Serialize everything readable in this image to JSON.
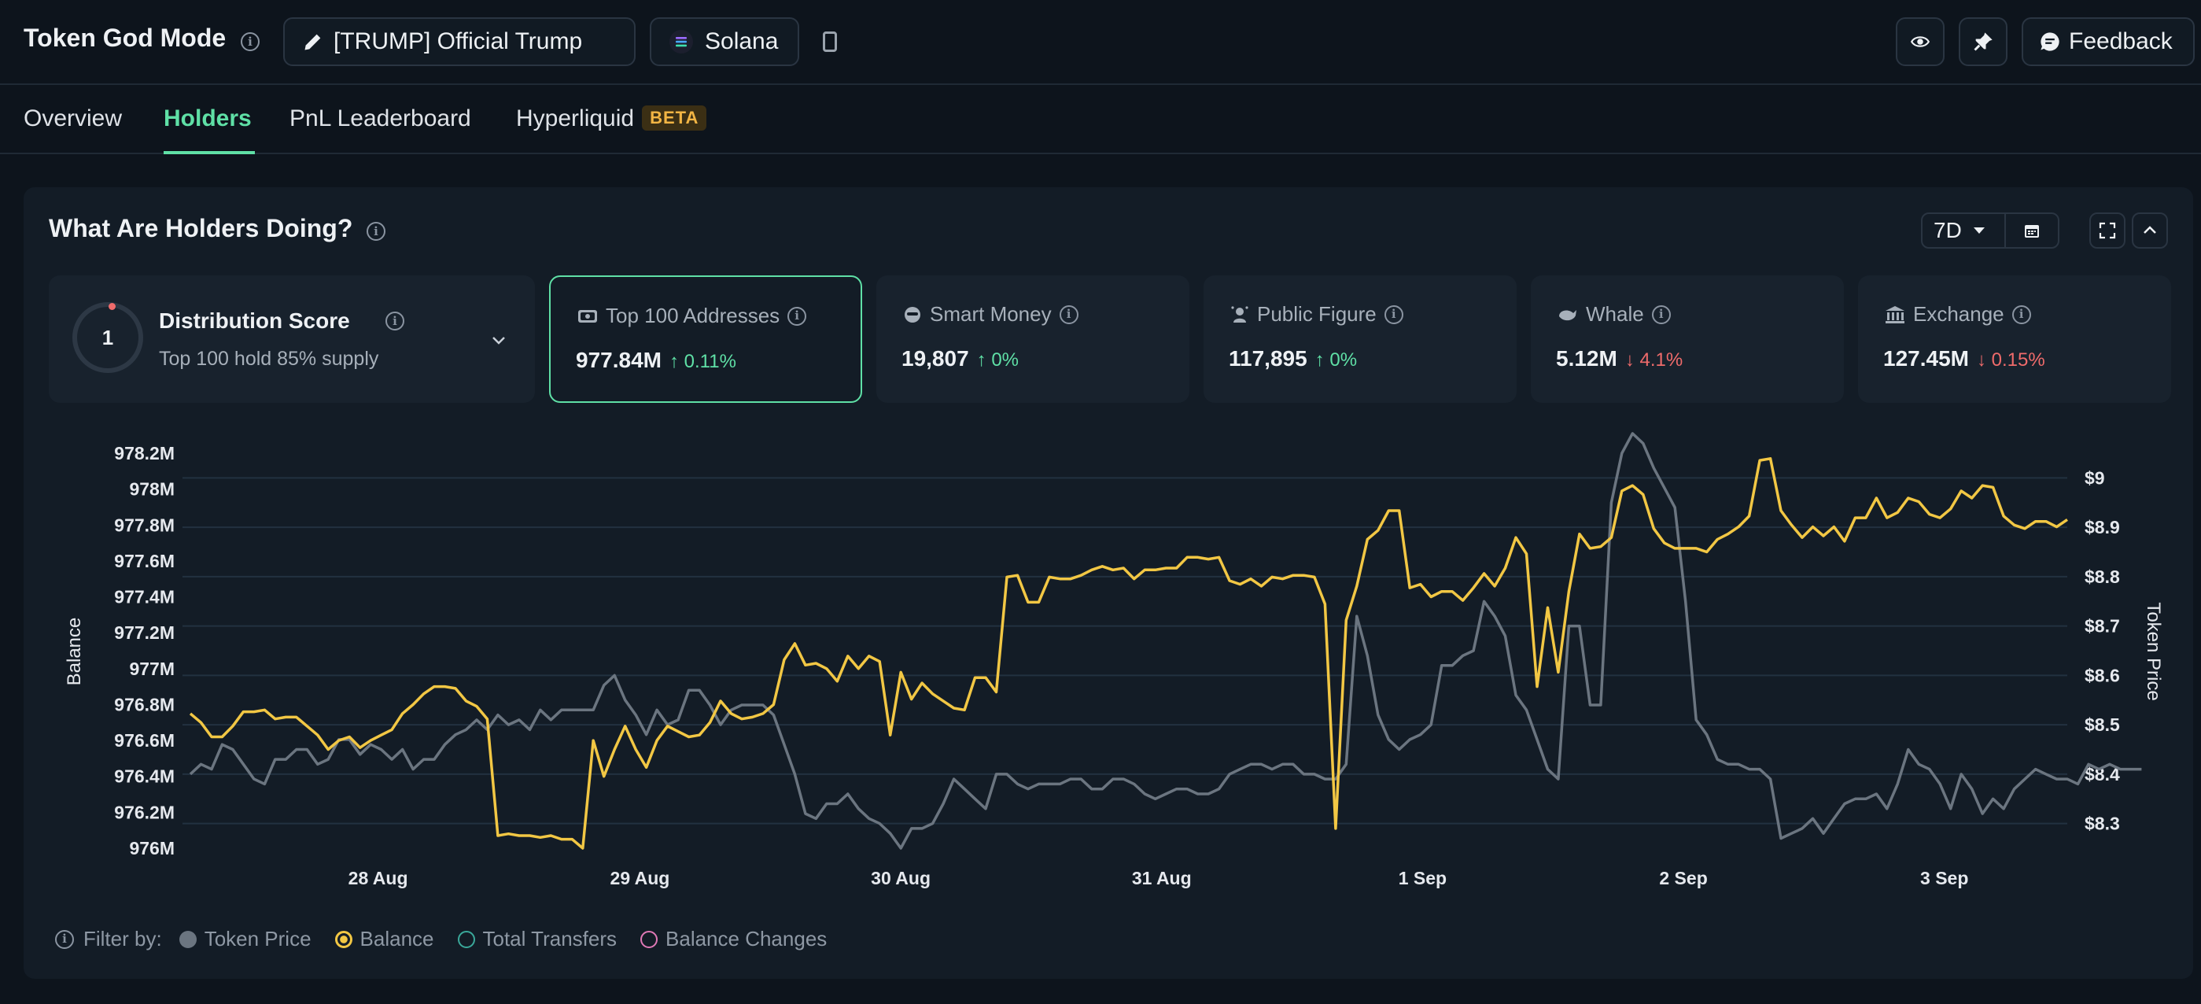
{
  "header": {
    "title": "Token God Mode",
    "token_label": "[TRUMP] Official Trump",
    "chain_label": "Solana",
    "feedback_label": "Feedback"
  },
  "tabs": [
    {
      "label": "Overview"
    },
    {
      "label": "Holders"
    },
    {
      "label": "PnL Leaderboard"
    },
    {
      "label": "Hyperliquid",
      "badge": "BETA"
    }
  ],
  "panel": {
    "title": "What Are Holders Doing?",
    "range": "7D"
  },
  "distribution": {
    "score": "1",
    "title": "Distribution Score",
    "subtitle": "Top 100 hold 85% supply"
  },
  "cards": [
    {
      "label": "Top 100 Addresses",
      "value": "977.84M",
      "change": "0.11%",
      "direction": "up",
      "icon": "wallet-icon"
    },
    {
      "label": "Smart Money",
      "value": "19,807",
      "change": "0%",
      "direction": "up",
      "icon": "smart-money-icon"
    },
    {
      "label": "Public Figure",
      "value": "117,895",
      "change": "0%",
      "direction": "up",
      "icon": "public-figure-icon"
    },
    {
      "label": "Whale",
      "value": "5.12M",
      "change": "4.1%",
      "direction": "down",
      "icon": "whale-icon"
    },
    {
      "label": "Exchange",
      "value": "127.45M",
      "change": "0.15%",
      "direction": "down",
      "icon": "exchange-icon"
    }
  ],
  "filters": {
    "label": "Filter by:",
    "items": [
      {
        "label": "Token Price",
        "color": "#6b7580",
        "active": true
      },
      {
        "label": "Balance",
        "color": "#f2c744",
        "active": true
      },
      {
        "label": "Total Transfers",
        "color": "#3aa89a",
        "active": false
      },
      {
        "label": "Balance Changes",
        "color": "#e079b6",
        "active": false
      }
    ]
  },
  "chart_data": {
    "type": "line",
    "ylabel": "Balance",
    "y2label": "Token Price",
    "ylim": [
      976.0,
      978.2
    ],
    "y2lim": [
      8.25,
      9.05
    ],
    "y_ticks": [
      "976M",
      "976.2M",
      "976.4M",
      "976.6M",
      "976.8M",
      "977M",
      "977.2M",
      "977.4M",
      "977.6M",
      "977.8M",
      "978M",
      "978.2M"
    ],
    "y2_ticks": [
      "$8.3",
      "$8.4",
      "$8.5",
      "$8.6",
      "$8.7",
      "$8.8",
      "$8.9",
      "$9"
    ],
    "x_ticks": [
      "28 Aug",
      "29 Aug",
      "30 Aug",
      "31 Aug",
      "1 Sep",
      "2 Sep",
      "3 Sep"
    ],
    "x_start": "27 Aug 17:00",
    "x_end": "3 Sep 12:00",
    "series": [
      {
        "name": "Balance",
        "color": "#f2c744",
        "axis": "left",
        "values": [
          976.75,
          976.7,
          976.62,
          976.62,
          976.68,
          976.76,
          976.76,
          976.77,
          976.72,
          976.73,
          976.73,
          976.68,
          976.63,
          976.55,
          976.6,
          976.62,
          976.56,
          976.6,
          976.63,
          976.66,
          976.75,
          976.8,
          976.86,
          976.9,
          976.9,
          976.89,
          976.82,
          976.79,
          976.72,
          976.07,
          976.08,
          976.07,
          976.07,
          976.06,
          976.07,
          976.05,
          976.05,
          976.0,
          976.6,
          976.4,
          976.55,
          976.68,
          976.55,
          976.45,
          976.6,
          976.68,
          976.65,
          976.62,
          976.63,
          976.7,
          976.82,
          976.75,
          976.72,
          976.73,
          976.75,
          976.8,
          977.05,
          977.14,
          977.02,
          977.03,
          977.0,
          976.93,
          977.07,
          977.0,
          977.07,
          977.04,
          976.63,
          976.98,
          976.83,
          976.92,
          976.86,
          976.82,
          976.78,
          976.77,
          976.95,
          976.95,
          976.87,
          977.51,
          977.52,
          977.37,
          977.37,
          977.51,
          977.5,
          977.5,
          977.52,
          977.55,
          977.57,
          977.55,
          977.56,
          977.5,
          977.55,
          977.55,
          977.56,
          977.56,
          977.62,
          977.62,
          977.61,
          977.62,
          977.49,
          977.47,
          977.5,
          977.46,
          977.51,
          977.5,
          977.52,
          977.52,
          977.51,
          977.36,
          976.11,
          977.27,
          977.46,
          977.72,
          977.77,
          977.88,
          977.88,
          977.45,
          977.47,
          977.4,
          977.43,
          977.43,
          977.38,
          977.45,
          977.53,
          977.46,
          977.56,
          977.73,
          977.64,
          976.9,
          977.34,
          976.98,
          977.43,
          977.75,
          977.67,
          977.68,
          977.73,
          977.99,
          978.02,
          977.97,
          977.78,
          977.7,
          977.67,
          977.67,
          977.67,
          977.65,
          977.72,
          977.75,
          977.79,
          977.85,
          978.16,
          978.17,
          977.88,
          977.8,
          977.73,
          977.79,
          977.74,
          977.79,
          977.71,
          977.84,
          977.84,
          977.95,
          977.84,
          977.87,
          977.95,
          977.93,
          977.86,
          977.84,
          977.89,
          977.99,
          977.95,
          978.02,
          978.01,
          977.85,
          977.8,
          977.78,
          977.82,
          977.82,
          977.79,
          977.83
        ]
      },
      {
        "name": "Token Price",
        "color": "#6b7580",
        "axis": "right",
        "values": [
          8.4,
          8.42,
          8.41,
          8.46,
          8.45,
          8.42,
          8.39,
          8.38,
          8.43,
          8.43,
          8.45,
          8.45,
          8.42,
          8.43,
          8.47,
          8.47,
          8.44,
          8.46,
          8.45,
          8.43,
          8.45,
          8.41,
          8.43,
          8.43,
          8.46,
          8.48,
          8.49,
          8.51,
          8.49,
          8.52,
          8.5,
          8.51,
          8.49,
          8.53,
          8.51,
          8.53,
          8.53,
          8.53,
          8.53,
          8.58,
          8.6,
          8.55,
          8.52,
          8.48,
          8.53,
          8.5,
          8.51,
          8.57,
          8.57,
          8.54,
          8.5,
          8.53,
          8.54,
          8.54,
          8.54,
          8.52,
          8.46,
          8.4,
          8.32,
          8.31,
          8.34,
          8.34,
          8.36,
          8.33,
          8.31,
          8.3,
          8.28,
          8.25,
          8.29,
          8.29,
          8.3,
          8.34,
          8.39,
          8.37,
          8.35,
          8.33,
          8.4,
          8.4,
          8.38,
          8.37,
          8.38,
          8.38,
          8.38,
          8.39,
          8.39,
          8.37,
          8.37,
          8.39,
          8.39,
          8.38,
          8.36,
          8.35,
          8.36,
          8.37,
          8.37,
          8.36,
          8.36,
          8.37,
          8.4,
          8.41,
          8.42,
          8.42,
          8.41,
          8.42,
          8.42,
          8.4,
          8.4,
          8.39,
          8.39,
          8.42,
          8.72,
          8.64,
          8.52,
          8.47,
          8.45,
          8.47,
          8.48,
          8.5,
          8.62,
          8.62,
          8.64,
          8.65,
          8.75,
          8.72,
          8.68,
          8.56,
          8.53,
          8.47,
          8.41,
          8.39,
          8.7,
          8.7,
          8.54,
          8.54,
          8.95,
          9.05,
          9.09,
          9.07,
          9.02,
          8.98,
          8.94,
          8.75,
          8.51,
          8.48,
          8.43,
          8.42,
          8.42,
          8.41,
          8.41,
          8.39,
          8.27,
          8.28,
          8.29,
          8.31,
          8.28,
          8.31,
          8.34,
          8.35,
          8.35,
          8.36,
          8.33,
          8.38,
          8.45,
          8.42,
          8.41,
          8.38,
          8.33,
          8.4,
          8.37,
          8.32,
          8.35,
          8.33,
          8.37,
          8.39,
          8.41,
          8.4,
          8.39,
          8.39,
          8.38,
          8.42,
          8.41,
          8.42,
          8.41,
          8.41,
          8.41
        ]
      }
    ]
  }
}
